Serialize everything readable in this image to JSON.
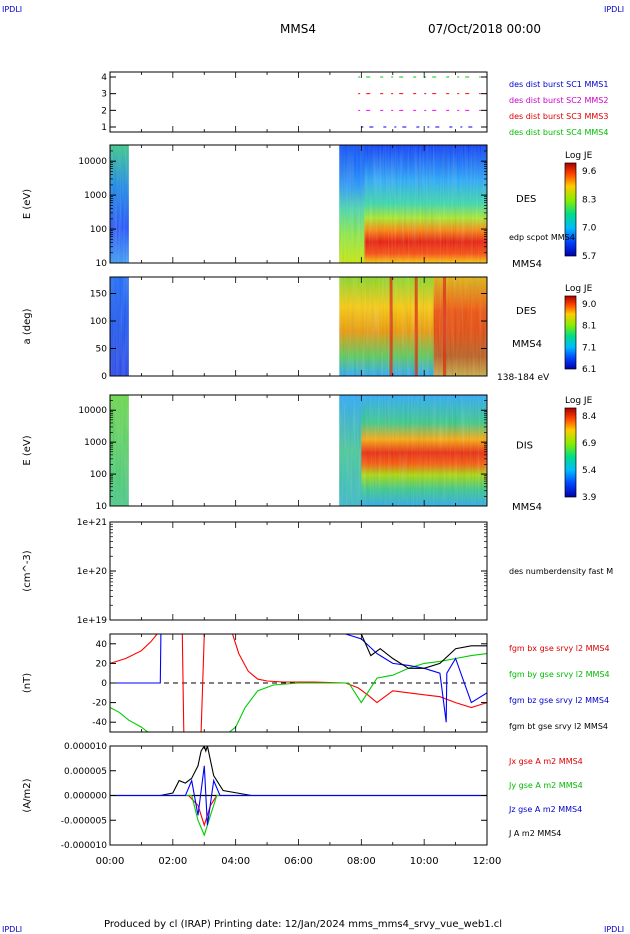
{
  "header": {
    "corner_tl": "IPDLI",
    "corner_tr": "IPDLI",
    "corner_bl": "IPDLI",
    "corner_br": "IPDLI",
    "spacecraft": "MMS4",
    "date": "07/Oct/2018 00:00"
  },
  "footer": {
    "text": "Produced by cl (IRAP)   Printing date: 12/Jan/2024   mms_mms4_srvy_vue_web1.cl"
  },
  "colors": {
    "red": "#ff0000",
    "green": "#00cc00",
    "blue": "#0000ff",
    "black": "#000000",
    "magenta": "#ff00ff",
    "label_blue": "#0000cc",
    "label_red": "#dd0000",
    "label_green": "#00bb00"
  },
  "chart_data": [
    {
      "id": "panel1",
      "type": "line",
      "ylabel": "",
      "yticks": [
        "4",
        "3",
        "2",
        "1"
      ],
      "ylim": [
        0.7,
        4.3
      ],
      "legend": [
        {
          "text": "des dist burst SC1 MMS1",
          "color": "#0000cc"
        },
        {
          "text": "des dist burst SC2 MMS2",
          "color": "#cc00cc"
        },
        {
          "text": "des dist burst SC3 MMS3",
          "color": "#dd0000"
        },
        {
          "text": "des dist burst SC4 MMS4",
          "color": "#00bb00"
        }
      ],
      "series": [
        {
          "level": 1,
          "color": "#0000ff",
          "intervals": [
            [
              8.0,
              11.6
            ]
          ]
        },
        {
          "level": 2,
          "color": "#ff00ff",
          "intervals": [
            [
              7.9,
              11.8
            ]
          ]
        },
        {
          "level": 3,
          "color": "#ff0000",
          "intervals": [
            [
              7.9,
              11.8
            ]
          ]
        },
        {
          "level": 4,
          "color": "#00cc00",
          "intervals": [
            [
              7.9,
              11.8
            ]
          ]
        }
      ]
    },
    {
      "id": "panel2",
      "type": "heatmap",
      "ylabel": "E (eV)",
      "yscale": "log",
      "yticks": [
        "10000",
        "1000",
        "100",
        "10"
      ],
      "ylim": [
        10,
        30000
      ],
      "label": "DES",
      "overlay_label": "edp scpot MMS4",
      "bottom_label": "MMS4",
      "colorbar": {
        "title": "Log JE",
        "ticks": [
          "9.6",
          "8.3",
          "7.0",
          "5.7"
        ]
      },
      "data_ranges": [
        [
          0.0,
          0.6
        ],
        [
          7.3,
          12.0
        ]
      ]
    },
    {
      "id": "panel3",
      "type": "heatmap",
      "ylabel": "a (deg)",
      "yticks": [
        "150",
        "100",
        "50",
        "0"
      ],
      "ylim": [
        0,
        180
      ],
      "label": "DES",
      "sub_label": "MMS4",
      "bottom_label": "138-184 eV",
      "colorbar": {
        "title": "Log JE",
        "ticks": [
          "9.0",
          "8.1",
          "7.1",
          "6.1"
        ]
      },
      "data_ranges": [
        [
          0.0,
          0.6
        ],
        [
          7.3,
          12.0
        ]
      ]
    },
    {
      "id": "panel4",
      "type": "heatmap",
      "ylabel": "E (eV)",
      "yscale": "log",
      "yticks": [
        "10000",
        "1000",
        "100",
        "10"
      ],
      "ylim": [
        10,
        30000
      ],
      "label": "DIS",
      "bottom_label": "MMS4",
      "colorbar": {
        "title": "Log JE",
        "ticks": [
          "8.4",
          "6.9",
          "5.4",
          "3.9"
        ]
      },
      "data_ranges": [
        [
          0.0,
          0.6
        ],
        [
          7.3,
          12.0
        ]
      ]
    },
    {
      "id": "panel5",
      "type": "line",
      "ylabel": "(cm^-3)",
      "yscale": "log",
      "yticks": [
        "1e+21",
        "1e+20",
        "1e+19"
      ],
      "ylim": [
        1e+19,
        1e+21
      ],
      "label": "des numberdensity fast M",
      "series": []
    },
    {
      "id": "panel6",
      "type": "line",
      "ylabel": "(nT)",
      "yticks": [
        "40",
        "20",
        "0",
        "-20",
        "-40"
      ],
      "ylim": [
        -50,
        50
      ],
      "legend": [
        {
          "text": "fgm bx gse srvy l2 MMS4",
          "color": "#dd0000"
        },
        {
          "text": "fgm by gse srvy l2 MMS4",
          "color": "#00bb00"
        },
        {
          "text": "fgm bz gse srvy l2 MMS4",
          "color": "#0000cc"
        },
        {
          "text": "fgm bt gse srvy l2 MMS4",
          "color": "#000000"
        }
      ],
      "series": [
        {
          "name": "bx",
          "color": "#ff0000",
          "x": [
            0.0,
            0.5,
            1.0,
            1.3,
            1.5,
            2.3,
            2.35,
            2.9,
            3.0,
            3.05,
            3.1,
            3.9,
            4.1,
            4.4,
            4.7,
            5.0,
            5.5,
            6.5,
            7.5,
            7.9,
            8.2,
            8.5,
            9.0,
            9.5,
            10.0,
            10.5,
            11.0,
            11.5,
            12.0
          ],
          "y": [
            20,
            25,
            33,
            42,
            50,
            50,
            -50,
            -50,
            50,
            50,
            50,
            50,
            30,
            12,
            4,
            2,
            1,
            1,
            0,
            -5,
            -12,
            -20,
            -8,
            -10,
            -12,
            -14,
            -20,
            -25,
            -20
          ]
        },
        {
          "name": "by",
          "color": "#00cc00",
          "x": [
            0.0,
            0.3,
            0.6,
            1.0,
            1.2,
            3.8,
            4.0,
            4.3,
            4.7,
            5.2,
            6.0,
            7.0,
            7.6,
            8.0,
            8.5,
            9.0,
            9.5,
            10.0,
            10.5,
            11.0,
            11.5,
            12.0
          ],
          "y": [
            -25,
            -30,
            -38,
            -45,
            -50,
            -50,
            -45,
            -25,
            -8,
            -2,
            0,
            0,
            0,
            -20,
            5,
            8,
            15,
            20,
            22,
            25,
            28,
            30
          ]
        },
        {
          "name": "bz",
          "color": "#0000ff",
          "x": [
            0.0,
            1.5,
            1.6,
            1.62,
            1.65,
            7.5,
            8.0,
            8.5,
            9.0,
            9.5,
            10.0,
            10.5,
            10.7,
            10.72,
            11.0,
            11.5,
            12.0
          ],
          "y": [
            0,
            0,
            0,
            50,
            50,
            50,
            45,
            30,
            20,
            18,
            15,
            10,
            -40,
            10,
            25,
            -20,
            -10
          ]
        },
        {
          "name": "bt",
          "color": "#000000",
          "x": [
            7.5,
            8.0,
            8.3,
            8.6,
            9.0,
            9.5,
            10.0,
            10.5,
            11.0,
            11.5,
            12.0
          ],
          "y": [
            50,
            50,
            28,
            35,
            25,
            15,
            15,
            20,
            35,
            38,
            38
          ]
        }
      ]
    },
    {
      "id": "panel7",
      "type": "line",
      "ylabel": "(A/m2)",
      "yticks": [
        "0.000010",
        "0.000005",
        "0.000000",
        "-0.000005",
        "-0.000010"
      ],
      "ylim": [
        -1e-05,
        1e-05
      ],
      "legend": [
        {
          "text": "Jx gse A m2 MMS4",
          "color": "#dd0000"
        },
        {
          "text": "Jy gse A m2 MMS4",
          "color": "#00bb00"
        },
        {
          "text": "Jz gse A m2 MMS4",
          "color": "#0000cc"
        },
        {
          "text": "J A m2 MMS4",
          "color": "#000000"
        }
      ],
      "series": [
        {
          "name": "J",
          "color": "#000000",
          "x": [
            0.0,
            1.6,
            2.0,
            2.2,
            2.4,
            2.6,
            2.8,
            2.9,
            3.0,
            3.05,
            3.1,
            3.3,
            3.6,
            4.5,
            12.0
          ],
          "y": [
            0,
            0,
            5e-07,
            3e-06,
            2.5e-06,
            3.5e-06,
            6e-06,
            9e-06,
            1e-05,
            9e-06,
            1e-05,
            4e-06,
            1e-06,
            0,
            0
          ]
        },
        {
          "name": "Jx",
          "color": "#ff0000",
          "x": [
            0.0,
            2.5,
            2.8,
            3.0,
            3.2,
            3.4,
            12.0
          ],
          "y": [
            0,
            0,
            -2e-06,
            -6e-06,
            -2e-06,
            0,
            0
          ]
        },
        {
          "name": "Jy",
          "color": "#00cc00",
          "x": [
            0.0,
            2.6,
            2.8,
            3.0,
            3.2,
            3.4,
            12.0
          ],
          "y": [
            0,
            0,
            -5e-06,
            -8e-06,
            -4e-06,
            0,
            0
          ]
        },
        {
          "name": "Jz",
          "color": "#0000ff",
          "x": [
            0.0,
            2.4,
            2.6,
            2.8,
            3.0,
            3.1,
            3.3,
            3.5,
            12.0
          ],
          "y": [
            0,
            0,
            3e-06,
            -4e-06,
            6e-06,
            -6e-06,
            3e-06,
            0,
            0
          ]
        }
      ]
    }
  ],
  "time_axis": {
    "xlim": [
      0,
      12
    ],
    "ticks": [
      "00:00",
      "02:00",
      "04:00",
      "06:00",
      "08:00",
      "10:00",
      "12:00"
    ]
  }
}
